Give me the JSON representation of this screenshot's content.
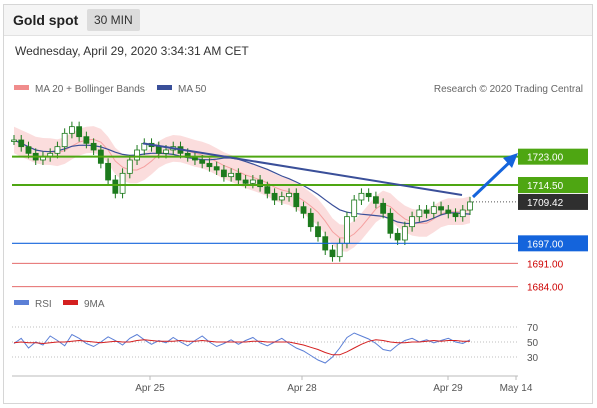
{
  "header": {
    "title": "Gold spot",
    "timeframe": "30 MIN"
  },
  "datetime": "Wednesday, April 29, 2020 3:34:31 AM CET",
  "legend": {
    "ma20": "MA 20 + Bollinger Bands",
    "ma50": "MA 50",
    "credit": "Research © 2020 Trading Central"
  },
  "rsi_legend": {
    "rsi": "RSI",
    "ma": "9MA"
  },
  "colors": {
    "green": "#4ea612",
    "blue": "#1464dc",
    "red": "#e05555",
    "candle": "#1d7a1d",
    "band": "#fad2d2",
    "ma50": "#3a4f99",
    "rsi": "#5b7fd6",
    "rsi_ma": "#d42020"
  },
  "chart_data": {
    "type": "candlestick",
    "y_range": [
      1680,
      1740
    ],
    "x_ticks": [
      "Apr 25",
      "Apr 28",
      "Apr 29",
      "May 14"
    ],
    "current_price": "1709.42",
    "levels": [
      {
        "value": 1723.0,
        "label": "1723.00",
        "kind": "resistance"
      },
      {
        "value": 1714.5,
        "label": "1714.50",
        "kind": "pivot"
      },
      {
        "value": 1697.0,
        "label": "1697.00",
        "kind": "support"
      },
      {
        "value": 1691.0,
        "label": "1691.00",
        "kind": "target"
      },
      {
        "value": 1684.0,
        "label": "1684.00",
        "kind": "target"
      }
    ],
    "trendline": [
      1727,
      1711.5
    ],
    "candles_close": [
      1728,
      1726,
      1724,
      1722,
      1723,
      1724,
      1726,
      1730,
      1732,
      1729,
      1727,
      1725,
      1721,
      1716,
      1712,
      1718,
      1722,
      1725,
      1727,
      1726,
      1724,
      1725,
      1726,
      1724,
      1723,
      1722,
      1721,
      1720,
      1719,
      1717,
      1718,
      1716,
      1715,
      1716,
      1714,
      1712,
      1710,
      1711,
      1712,
      1708,
      1706,
      1702,
      1699,
      1695,
      1693,
      1697,
      1705,
      1710,
      1712,
      1711,
      1709,
      1706,
      1700,
      1698,
      1702,
      1705,
      1707,
      1706,
      1708,
      1707,
      1706,
      1705,
      1707,
      1709.42
    ],
    "rsi": {
      "levels": [
        70,
        50,
        30
      ],
      "values": [
        48,
        55,
        42,
        50,
        46,
        58,
        52,
        45,
        60,
        55,
        48,
        44,
        50,
        57,
        52,
        46,
        55,
        60,
        53,
        47,
        52,
        49,
        56,
        50,
        45,
        52,
        58,
        50,
        44,
        48,
        53,
        47,
        52,
        56,
        49,
        45,
        50,
        55,
        48,
        42,
        38,
        32,
        26,
        22,
        30,
        42,
        56,
        62,
        58,
        54,
        48,
        40,
        38,
        46,
        52,
        55,
        50,
        53,
        49,
        52,
        55,
        50,
        48,
        53
      ],
      "ma": [
        49,
        50,
        49,
        49,
        48,
        49,
        50,
        50,
        51,
        52,
        51,
        50,
        49,
        50,
        51,
        50,
        50,
        52,
        53,
        52,
        51,
        51,
        51,
        52,
        51,
        51,
        52,
        51,
        50,
        50,
        50,
        50,
        50,
        51,
        51,
        50,
        50,
        50,
        50,
        48,
        46,
        43,
        40,
        36,
        33,
        33,
        37,
        42,
        47,
        51,
        53,
        52,
        50,
        49,
        49,
        50,
        50,
        51,
        52,
        51,
        52,
        52,
        51,
        51
      ]
    }
  }
}
